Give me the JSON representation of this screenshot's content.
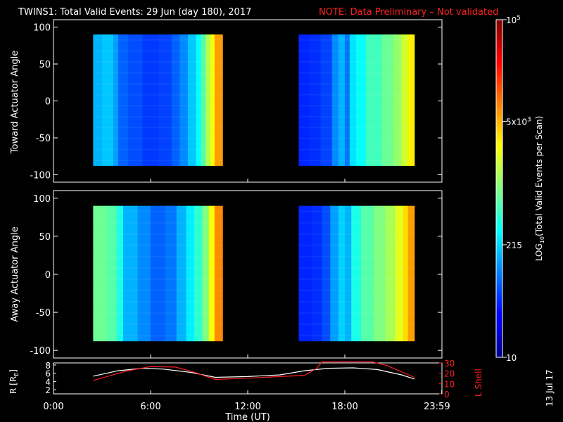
{
  "title": {
    "main": "TWINS1: Total Valid Events: 29 Jun (day 180), 2017",
    "note": "NOTE: Data Preliminary – Not validated",
    "note_color": "#ff2020"
  },
  "side_date": "13 Jul 17",
  "chart_data": [
    {
      "type": "heatmap",
      "name": "toward",
      "ylabel": "Toward Actuator Angle",
      "ylim": [
        -110,
        110
      ],
      "yticks": [
        100,
        50,
        0,
        -50,
        -100
      ],
      "xlim": [
        0,
        24
      ],
      "angle_range": [
        -88,
        90
      ],
      "blocks": [
        {
          "t_start": 2.45,
          "t_end": 10.45
        },
        {
          "t_start": 15.15,
          "t_end": 22.3
        }
      ],
      "columns": [
        {
          "t": 2.45,
          "v": 0.3
        },
        {
          "t": 3.0,
          "v": 0.32
        },
        {
          "t": 3.7,
          "v": 0.28
        },
        {
          "t": 4.0,
          "v": 0.22
        },
        {
          "t": 4.6,
          "v": 0.2
        },
        {
          "t": 5.5,
          "v": 0.18
        },
        {
          "t": 6.5,
          "v": 0.19
        },
        {
          "t": 7.3,
          "v": 0.22
        },
        {
          "t": 7.8,
          "v": 0.26
        },
        {
          "t": 8.3,
          "v": 0.32
        },
        {
          "t": 8.8,
          "v": 0.38
        },
        {
          "t": 9.1,
          "v": 0.45
        },
        {
          "t": 9.4,
          "v": 0.55
        },
        {
          "t": 9.7,
          "v": 0.62
        },
        {
          "t": 9.95,
          "v": 0.72
        },
        {
          "t": 15.15,
          "v": 0.16
        },
        {
          "t": 15.8,
          "v": 0.17
        },
        {
          "t": 16.5,
          "v": 0.19
        },
        {
          "t": 17.2,
          "v": 0.26
        },
        {
          "t": 17.6,
          "v": 0.3
        },
        {
          "t": 18.0,
          "v": 0.24
        },
        {
          "t": 18.3,
          "v": 0.35
        },
        {
          "t": 18.7,
          "v": 0.38
        },
        {
          "t": 19.3,
          "v": 0.44
        },
        {
          "t": 20.3,
          "v": 0.48
        },
        {
          "t": 21.0,
          "v": 0.52
        },
        {
          "t": 21.5,
          "v": 0.58
        },
        {
          "t": 21.9,
          "v": 0.64
        }
      ]
    },
    {
      "type": "heatmap",
      "name": "away",
      "ylabel": "Away Actuator Angle",
      "ylim": [
        -110,
        110
      ],
      "yticks": [
        100,
        50,
        0,
        -50,
        -100
      ],
      "xlim": [
        0,
        24
      ],
      "angle_range": [
        -88,
        90
      ],
      "blocks": [
        {
          "t_start": 2.45,
          "t_end": 10.45
        },
        {
          "t_start": 15.15,
          "t_end": 22.3
        }
      ],
      "columns": [
        {
          "t": 2.45,
          "v": 0.48
        },
        {
          "t": 3.3,
          "v": 0.46
        },
        {
          "t": 3.9,
          "v": 0.4
        },
        {
          "t": 4.3,
          "v": 0.3
        },
        {
          "t": 5.2,
          "v": 0.26
        },
        {
          "t": 6.0,
          "v": 0.22
        },
        {
          "t": 6.9,
          "v": 0.24
        },
        {
          "t": 7.6,
          "v": 0.3
        },
        {
          "t": 8.2,
          "v": 0.36
        },
        {
          "t": 8.7,
          "v": 0.42
        },
        {
          "t": 9.2,
          "v": 0.5
        },
        {
          "t": 9.6,
          "v": 0.62
        },
        {
          "t": 9.95,
          "v": 0.74
        },
        {
          "t": 15.15,
          "v": 0.16
        },
        {
          "t": 16.0,
          "v": 0.17
        },
        {
          "t": 16.6,
          "v": 0.2
        },
        {
          "t": 17.1,
          "v": 0.28
        },
        {
          "t": 17.6,
          "v": 0.33
        },
        {
          "t": 18.0,
          "v": 0.3
        },
        {
          "t": 18.4,
          "v": 0.4
        },
        {
          "t": 19.0,
          "v": 0.46
        },
        {
          "t": 19.8,
          "v": 0.5
        },
        {
          "t": 20.5,
          "v": 0.54
        },
        {
          "t": 21.1,
          "v": 0.6
        },
        {
          "t": 21.6,
          "v": 0.66
        },
        {
          "t": 21.9,
          "v": 0.72
        }
      ]
    },
    {
      "type": "line",
      "name": "orbit",
      "xlabel": "Time (UT)",
      "xlim": [
        0,
        24
      ],
      "xticks": [
        "0:00",
        "6:00",
        "12:00",
        "18:00",
        "23:59"
      ],
      "ylabel_left": "R [R",
      "ylabel_left_sub": "E",
      "ylabel_left_end": "]",
      "ylim_left": [
        1,
        8.5
      ],
      "yticks_left": [
        "2",
        "4",
        "6",
        "8"
      ],
      "ylabel_right": "L Shell",
      "ylim_right": [
        0,
        30
      ],
      "yticks_right": [
        "0",
        "10",
        "20",
        "30"
      ],
      "series": [
        {
          "axis": "left",
          "color": "#ffffff",
          "x": [
            2.45,
            4,
            5.5,
            6.8,
            8.5,
            10,
            12,
            14,
            15.5,
            17,
            18.5,
            20,
            21.5,
            22.3
          ],
          "y": [
            5.3,
            6.6,
            7.2,
            7.0,
            6.2,
            5.0,
            5.2,
            5.6,
            6.6,
            7.2,
            7.3,
            6.9,
            5.6,
            4.6
          ]
        },
        {
          "axis": "right",
          "color": "#ff2020",
          "x": [
            2.45,
            4.5,
            6.0,
            7.5,
            8.5,
            10.0,
            12.0,
            14.0,
            15.5,
            16.2,
            16.6,
            19.7,
            20.6,
            22.3
          ],
          "y": [
            13.0,
            22.0,
            26.5,
            26.0,
            22.0,
            14.0,
            15.2,
            16.8,
            18.0,
            24.0,
            31.0,
            31.0,
            27.5,
            16.0
          ]
        }
      ]
    }
  ],
  "colorbar": {
    "label_prefix": "LOG",
    "label_sub": "10",
    "label_rest": "(Total Valid Events per Scan)",
    "ticks": [
      {
        "base": "10",
        "exp": "",
        "pos": 0.0
      },
      {
        "base": "215",
        "exp": "",
        "pos": 0.3334
      },
      {
        "base": "5x10",
        "exp": "3",
        "pos": 0.6988
      },
      {
        "base": "10",
        "exp": "5",
        "pos": 1.0
      }
    ]
  }
}
